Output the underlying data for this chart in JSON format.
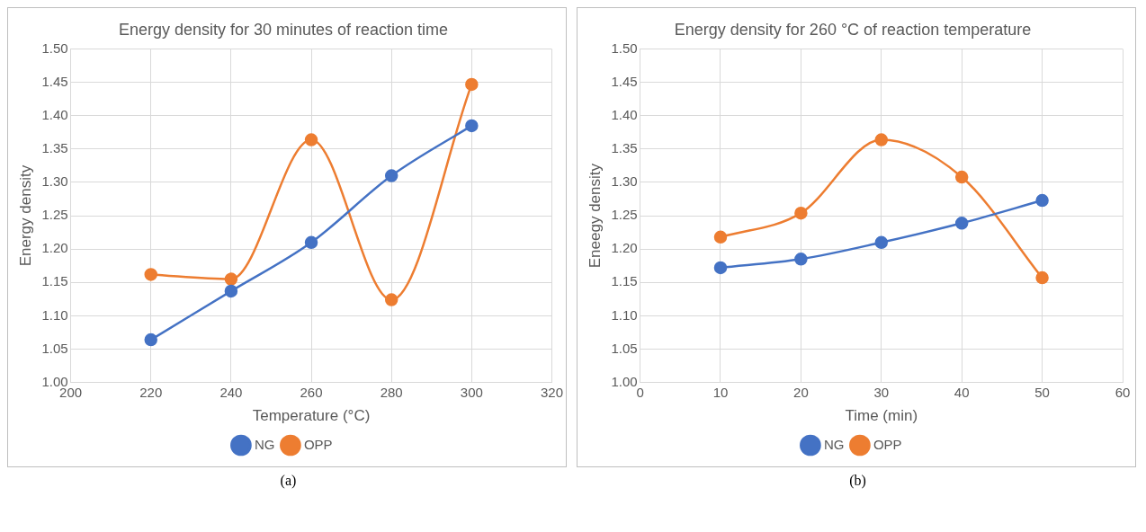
{
  "chart_data": [
    {
      "type": "line",
      "title": "Energy density for 30 minutes of reaction time",
      "xlabel": "Temperature (°C)",
      "ylabel": "Energy density",
      "x": [
        220,
        240,
        260,
        280,
        300
      ],
      "series": [
        {
          "name": "NG",
          "color": "#4472c4",
          "values": [
            1.064,
            1.137,
            1.21,
            1.31,
            1.385
          ]
        },
        {
          "name": "OPP",
          "color": "#ed7d31",
          "values": [
            1.162,
            1.155,
            1.364,
            1.124,
            1.447
          ]
        }
      ],
      "xlim": [
        200,
        320
      ],
      "xticks": [
        200,
        220,
        240,
        260,
        280,
        300,
        320
      ],
      "ylim": [
        1.0,
        1.5
      ],
      "yticks": [
        {
          "value": 1,
          "label": "1.00"
        },
        {
          "value": 1.05,
          "label": "1.05"
        },
        {
          "value": 1.1,
          "label": "1.10"
        },
        {
          "value": 1.15,
          "label": "1.15"
        },
        {
          "value": 1.2,
          "label": "1.20"
        },
        {
          "value": 1.25,
          "label": "1.25"
        },
        {
          "value": 1.3,
          "label": "1.30"
        },
        {
          "value": 1.35,
          "label": "1.35"
        },
        {
          "value": 1.4,
          "label": "1.40"
        },
        {
          "value": 1.45,
          "label": "1.45"
        },
        {
          "value": 1.5,
          "label": "1.50"
        }
      ],
      "grid": true,
      "legend": "bottom",
      "marker": "circle",
      "annotations": [
        "(a)"
      ]
    },
    {
      "type": "line",
      "title": "Energy density for 260 °C of reaction temperature",
      "xlabel": "Time (min)",
      "ylabel": "Eneegy density",
      "x": [
        10,
        20,
        30,
        40,
        50
      ],
      "series": [
        {
          "name": "NG",
          "color": "#4472c4",
          "values": [
            1.172,
            1.185,
            1.21,
            1.239,
            1.273
          ]
        },
        {
          "name": "OPP",
          "color": "#ed7d31",
          "values": [
            1.218,
            1.254,
            1.364,
            1.308,
            1.157
          ]
        }
      ],
      "xlim": [
        0,
        60
      ],
      "xticks": [
        0,
        10,
        20,
        30,
        40,
        50,
        60
      ],
      "ylim": [
        1.0,
        1.5
      ],
      "yticks": [
        {
          "value": 1,
          "label": "1.00"
        },
        {
          "value": 1.05,
          "label": "1.05"
        },
        {
          "value": 1.1,
          "label": "1.10"
        },
        {
          "value": 1.15,
          "label": "1.15"
        },
        {
          "value": 1.2,
          "label": "1.20"
        },
        {
          "value": 1.25,
          "label": "1.25"
        },
        {
          "value": 1.3,
          "label": "1.30"
        },
        {
          "value": 1.35,
          "label": "1.35"
        },
        {
          "value": 1.4,
          "label": "1.40"
        },
        {
          "value": 1.45,
          "label": "1.45"
        },
        {
          "value": 1.5,
          "label": "1.50"
        }
      ],
      "grid": true,
      "legend": "bottom",
      "marker": "circle",
      "annotations": [
        "(b)"
      ]
    }
  ]
}
